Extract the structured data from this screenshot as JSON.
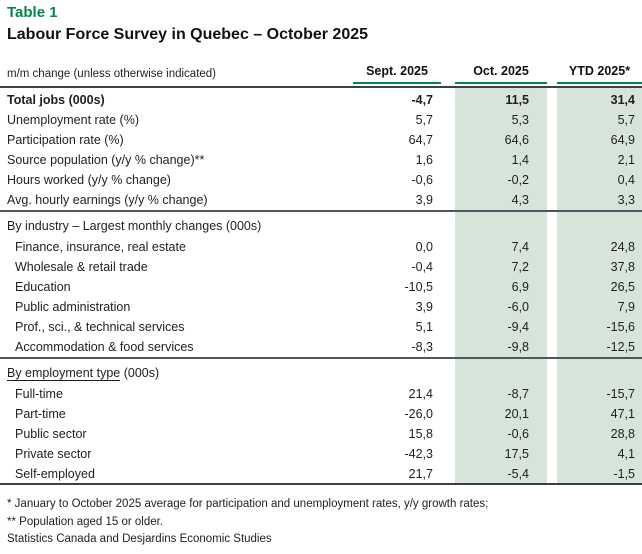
{
  "table_label": "Table 1",
  "title": "Labour Force Survey in Quebec – October 2025",
  "meta_label": "m/m change (unless otherwise indicated)",
  "columns": [
    "Sept. 2025",
    "Oct. 2025",
    "YTD 2025*"
  ],
  "colors": {
    "brand_green": "#00874e",
    "band_green": "#d6e4da",
    "rule_dark": "#3c4043",
    "divider_gray": "#4e565e"
  },
  "chart_data": {
    "type": "table",
    "title": "Labour Force Survey in Quebec – October 2025",
    "columns": [
      "m/m change (unless otherwise indicated)",
      "Sept. 2025",
      "Oct. 2025",
      "YTD 2025*"
    ],
    "sections": [
      {
        "header_parts": [],
        "rows": [
          {
            "label": "Total jobs (000s)",
            "bold": true,
            "values": [
              "-4,7",
              "11,5",
              "31,4"
            ]
          },
          {
            "label": "Unemployment rate (%)",
            "bold": false,
            "values": [
              "5,7",
              "5,3",
              "5,7"
            ]
          },
          {
            "label": "Participation rate (%)",
            "bold": false,
            "values": [
              "64,7",
              "64,6",
              "64,9"
            ]
          },
          {
            "label": "Source population (y/y % change)**",
            "bold": false,
            "values": [
              "1,6",
              "1,4",
              "2,1"
            ]
          },
          {
            "label": "Hours worked (y/y % change)",
            "bold": false,
            "values": [
              "-0,6",
              "-0,2",
              "0,4"
            ]
          },
          {
            "label": "Avg. hourly earnings (y/y % change)",
            "bold": false,
            "values": [
              "3,9",
              "4,3",
              "3,3"
            ]
          }
        ]
      },
      {
        "header_parts": [
          {
            "text": "By industry – Largest monthly changes (000s)",
            "underline": false
          }
        ],
        "rows": [
          {
            "label": "Finance, insurance, real estate",
            "bold": false,
            "values": [
              "0,0",
              "7,4",
              "24,8"
            ]
          },
          {
            "label": "Wholesale & retail trade",
            "bold": false,
            "values": [
              "-0,4",
              "7,2",
              "37,8"
            ]
          },
          {
            "label": "Education",
            "bold": false,
            "values": [
              "-10,5",
              "6,9",
              "26,5"
            ]
          },
          {
            "label": "Public administration",
            "bold": false,
            "values": [
              "3,9",
              "-6,0",
              "7,9"
            ]
          },
          {
            "label": "Prof., sci., & technical services",
            "bold": false,
            "values": [
              "5,1",
              "-9,4",
              "-15,6"
            ]
          },
          {
            "label": "Accommodation & food services",
            "bold": false,
            "values": [
              "-8,3",
              "-9,8",
              "-12,5"
            ]
          }
        ]
      },
      {
        "header_parts": [
          {
            "text": "By employment type",
            "underline": true
          },
          {
            "text": " (000s)",
            "underline": false
          }
        ],
        "rows": [
          {
            "label": "Full-time",
            "bold": false,
            "values": [
              "21,4",
              "-8,7",
              "-15,7"
            ]
          },
          {
            "label": "Part-time",
            "bold": false,
            "values": [
              "-26,0",
              "20,1",
              "47,1"
            ]
          },
          {
            "label": "Public sector",
            "bold": false,
            "values": [
              "15,8",
              "-0,6",
              "28,8"
            ]
          },
          {
            "label": "Private sector",
            "bold": false,
            "values": [
              "-42,3",
              "17,5",
              "4,1"
            ]
          },
          {
            "label": "Self-employed",
            "bold": false,
            "values": [
              "21,7",
              "-5,4",
              "-1,5"
            ]
          }
        ]
      }
    ]
  },
  "footnotes": [
    "* January to October 2025 average for participation and unemployment rates, y/y growth rates;",
    "** Population aged 15 or older.",
    "Statistics Canada and Desjardins Economic Studies"
  ]
}
